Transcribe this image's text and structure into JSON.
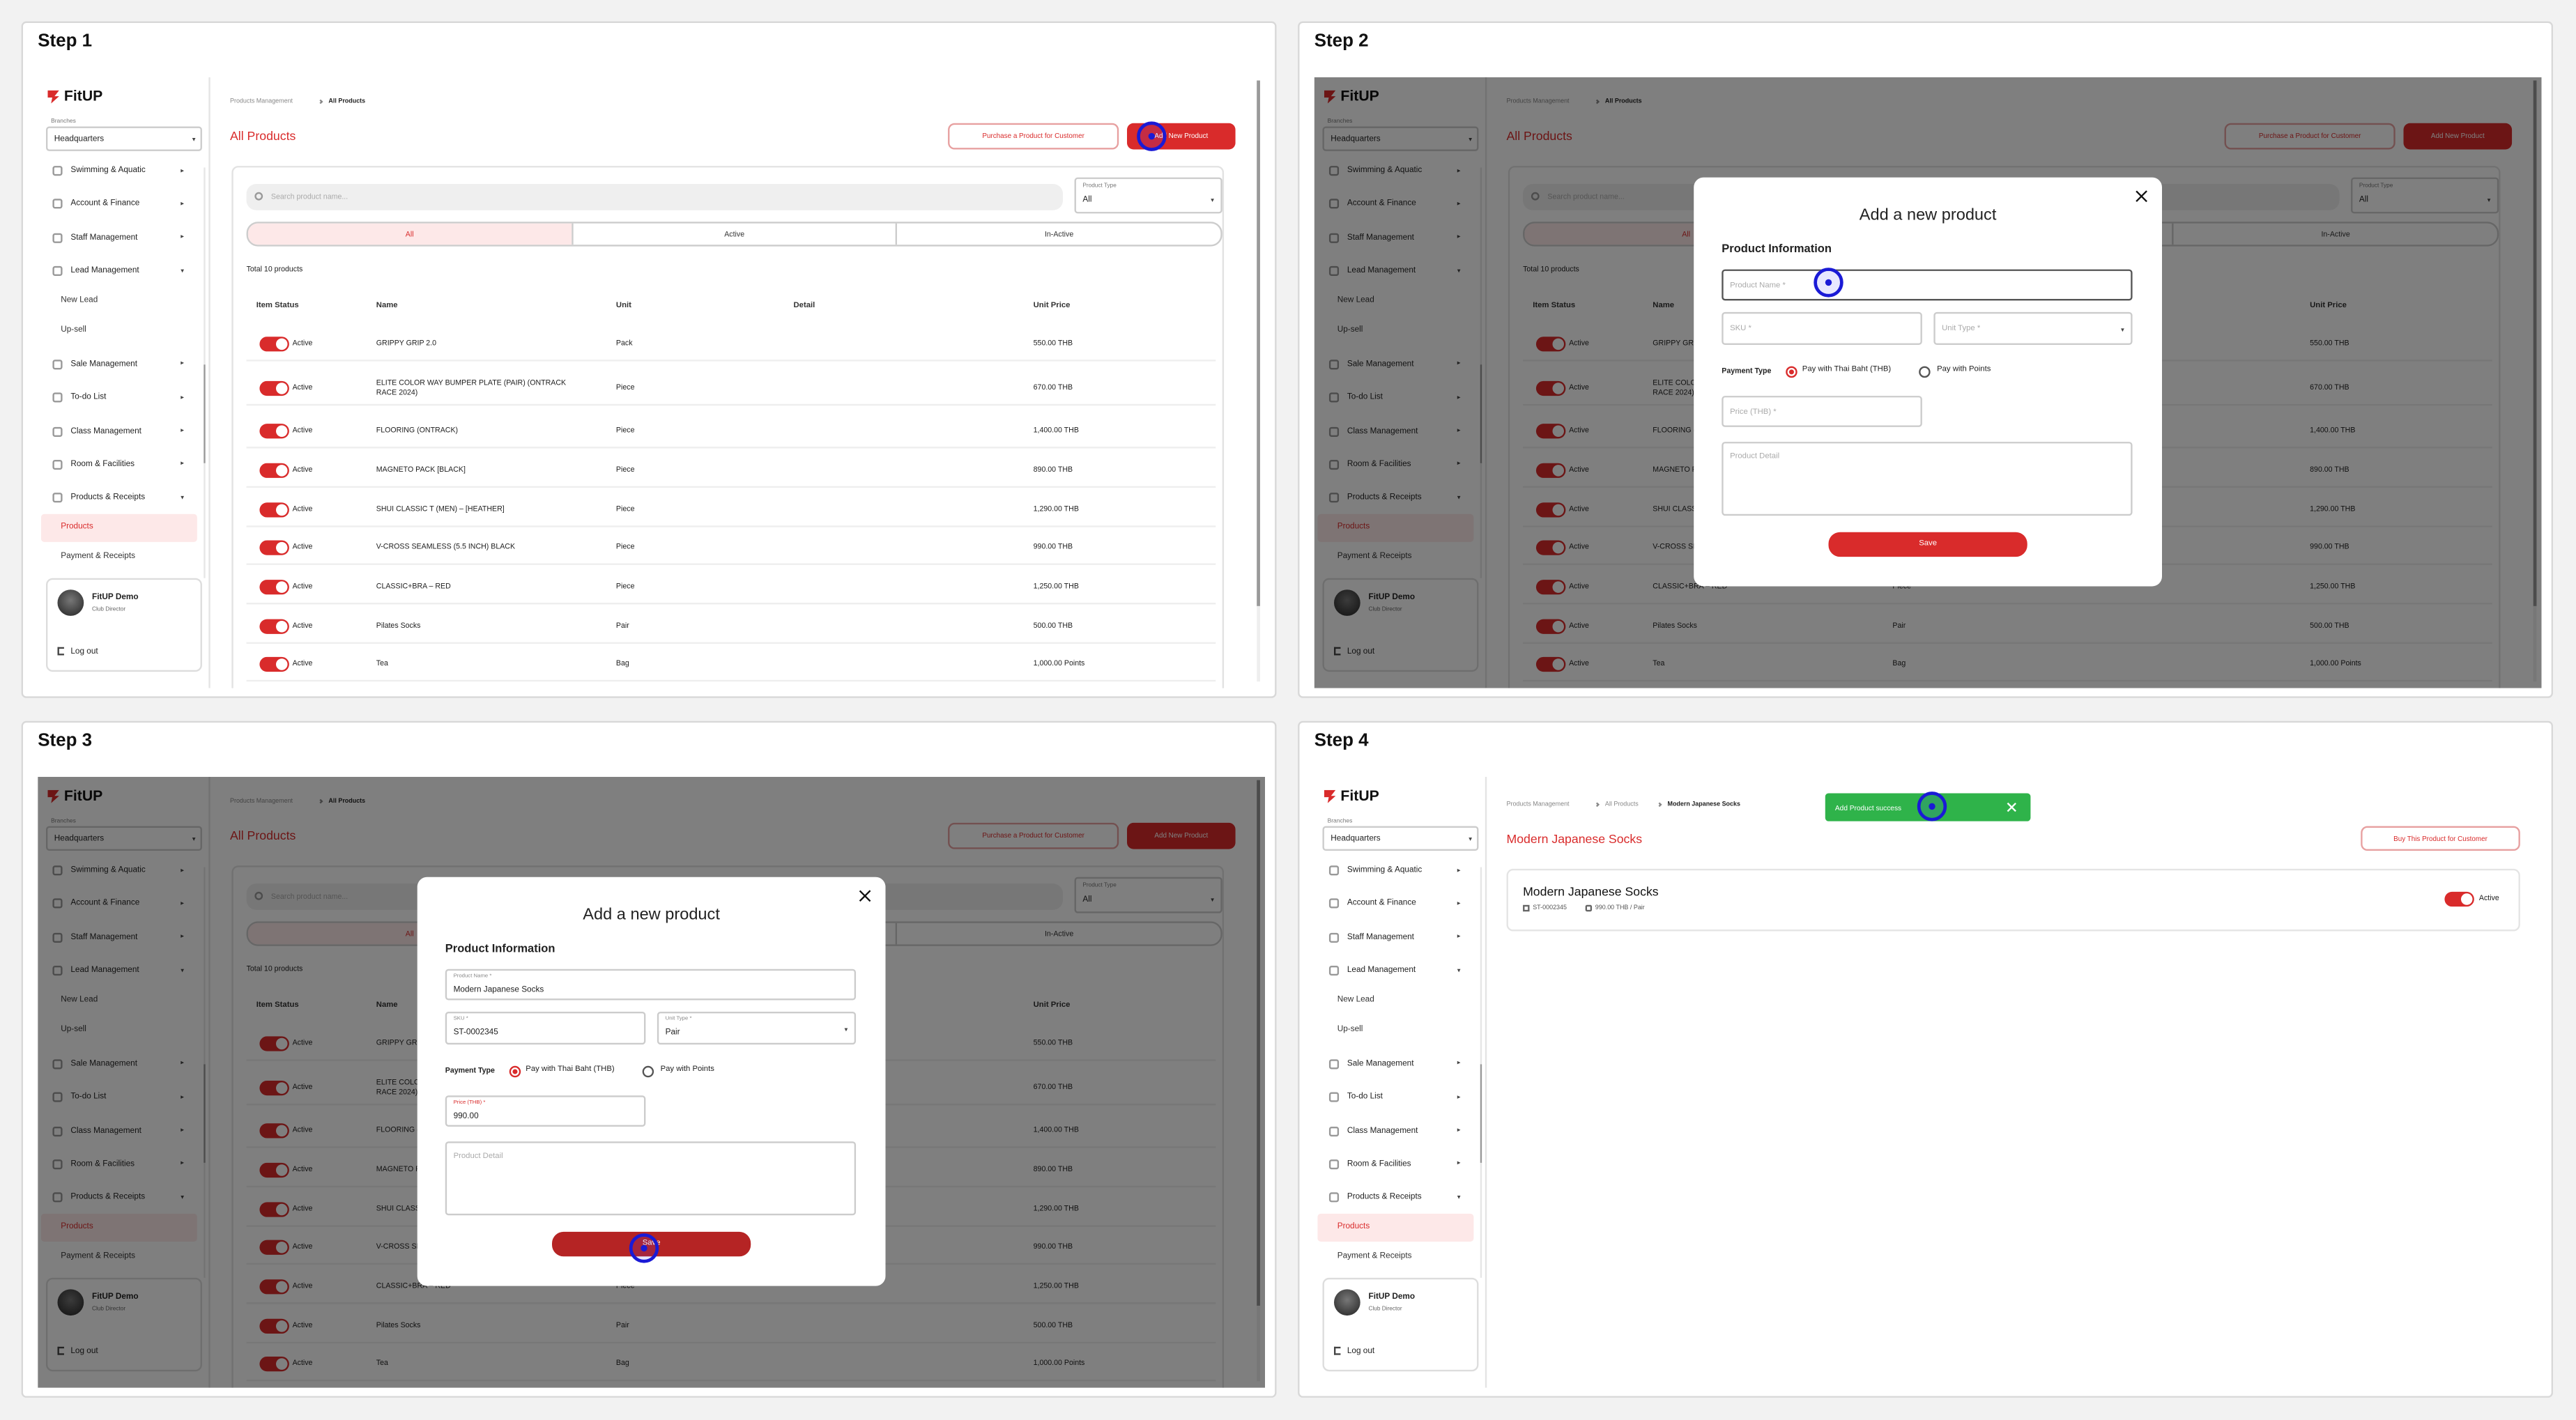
{
  "steps": [
    "Step 1",
    "Step 2",
    "Step 3",
    "Step 4"
  ],
  "sidebar": {
    "logo": "FitUP",
    "branch_label": "Branches",
    "branch": "Headquarters",
    "menu": [
      {
        "label": "Swimming & Aquatic"
      },
      {
        "label": "Account & Finance"
      },
      {
        "label": "Staff Management"
      },
      {
        "label": "Lead Management",
        "children": [
          "New Lead",
          "Up-sell"
        ]
      },
      {
        "label": "Sale Management"
      },
      {
        "label": "To-do List"
      },
      {
        "label": "Class Management"
      },
      {
        "label": "Room & Facilities"
      },
      {
        "label": "Products & Receipts",
        "children": [
          "Products",
          "Payment & Receipts"
        ]
      }
    ],
    "user": {
      "name": "FitUP Demo",
      "role": "Club Director"
    },
    "logout": "Log out"
  },
  "list_page": {
    "breadcrumb": [
      "Products Management",
      "All Products"
    ],
    "title": "All Products",
    "purchase_button": "Purchase a Product for Customer",
    "add_button": "Add New Product",
    "search_placeholder": "Search product name...",
    "type_label": "Product Type",
    "type_value": "All",
    "tabs": [
      "All",
      "Active",
      "In-Active"
    ],
    "total": "Total 10 products",
    "columns": [
      "Item Status",
      "Name",
      "Unit",
      "Detail",
      "Unit Price"
    ],
    "rows": [
      {
        "status": "Active",
        "name": "GRIPPY GRIP 2.0",
        "unit": "Pack",
        "price": "550.00 THB"
      },
      {
        "status": "Active",
        "name": "ELITE COLOR WAY BUMPER PLATE (PAIR) (ONTRACK RACE 2024)",
        "unit": "Piece",
        "price": "670.00 THB"
      },
      {
        "status": "Active",
        "name": "FLOORING (ONTRACK)",
        "unit": "Piece",
        "price": "1,400.00 THB"
      },
      {
        "status": "Active",
        "name": "MAGNETO PACK [BLACK]",
        "unit": "Piece",
        "price": "890.00 THB"
      },
      {
        "status": "Active",
        "name": "SHUI CLASSIC T (MEN) – [HEATHER]",
        "unit": "Piece",
        "price": "1,290.00 THB"
      },
      {
        "status": "Active",
        "name": "V-CROSS SEAMLESS (5.5 INCH) BLACK",
        "unit": "Piece",
        "price": "990.00 THB"
      },
      {
        "status": "Active",
        "name": "CLASSIC+BRA – RED",
        "unit": "Piece",
        "price": "1,250.00 THB"
      },
      {
        "status": "Active",
        "name": "Pilates Socks",
        "unit": "Pair",
        "price": "500.00 THB"
      },
      {
        "status": "Active",
        "name": "Tea",
        "unit": "Bag",
        "price": "1,000.00 Points"
      }
    ]
  },
  "modal": {
    "title": "Add a new product",
    "section": "Product Information",
    "name_label": "Product Name *",
    "sku_label": "SKU *",
    "unit_label": "Unit Type *",
    "payment_label": "Payment Type",
    "options": [
      "Pay with Thai Baht (THB)",
      "Pay with Points"
    ],
    "price_label": "Price (THB) *",
    "detail_label": "Product Detail",
    "save": "Save"
  },
  "filled": {
    "name": "Modern Japanese Socks",
    "sku": "ST-0002345",
    "unit": "Pair",
    "price": "990.00"
  },
  "detail_page": {
    "breadcrumb": [
      "Products Management",
      "All Products",
      "Modern Japanese Socks"
    ],
    "toast": "Add Product success",
    "title": "Modern Japanese Socks",
    "buy_button": "Buy This Product for Customer",
    "name": "Modern Japanese Socks",
    "sku": "ST-0002345",
    "price": "990.00 THB / Pair",
    "status": "Active"
  }
}
